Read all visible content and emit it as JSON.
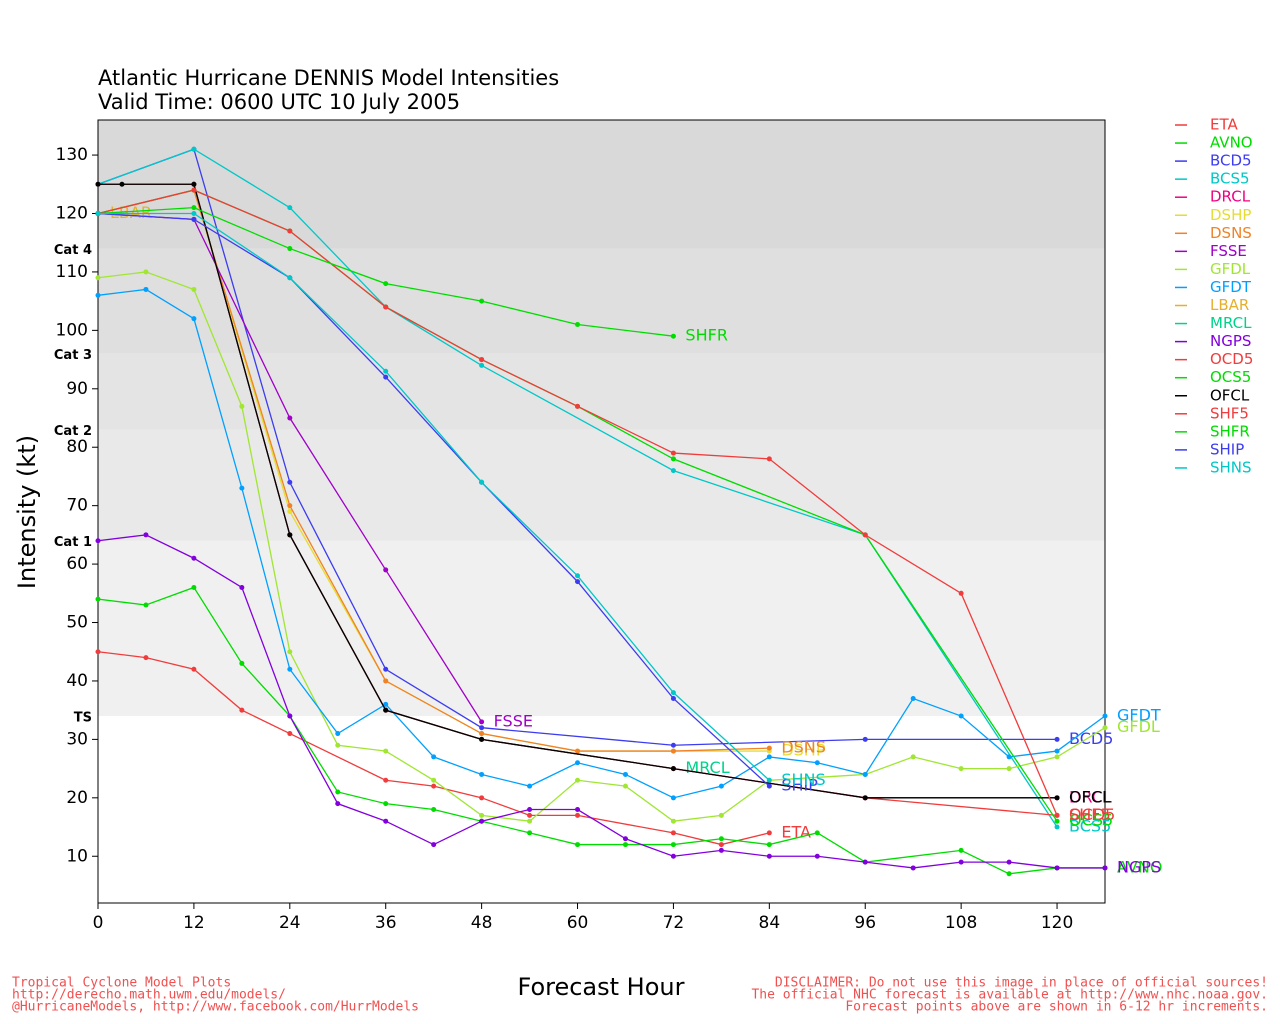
{
  "chart_data": {
    "type": "line",
    "title": "Atlantic Hurricane DENNIS Model Intensities",
    "subtitle": "Valid Time: 0600 UTC 10 July 2005",
    "x_label": "Forecast Hour",
    "y_label": "Intensity (kt)",
    "xlim": [
      0,
      126
    ],
    "ylim": [
      2,
      136
    ],
    "xticks": [
      0,
      12,
      24,
      36,
      48,
      60,
      72,
      84,
      96,
      108,
      120
    ],
    "yticks": [
      10,
      20,
      30,
      40,
      50,
      60,
      70,
      80,
      90,
      100,
      110,
      120,
      130
    ],
    "legend": "right",
    "intensity_bands": [
      {
        "label": "TS",
        "value": 34,
        "color": "#f0f0f0"
      },
      {
        "label": "Cat 1",
        "value": 64,
        "color": "#e9e9e9"
      },
      {
        "label": "Cat 2",
        "value": 83,
        "color": "#e4e4e4"
      },
      {
        "label": "Cat 3",
        "value": 96,
        "color": "#dfdfdf"
      },
      {
        "label": "Cat 4",
        "value": 114,
        "color": "#d9d9d9"
      }
    ],
    "series": [
      {
        "name": "ETA",
        "color": "#f03c3c",
        "x": [
          0,
          6,
          12,
          18,
          24,
          36,
          42,
          48,
          54,
          60,
          72,
          78,
          84
        ],
        "values": [
          45,
          44,
          42,
          35,
          31,
          23,
          22,
          20,
          17,
          17,
          14,
          12,
          14
        ]
      },
      {
        "name": "AVNO",
        "color": "#00dc00",
        "x": [
          0,
          6,
          12,
          18,
          24,
          30,
          36,
          42,
          48,
          54,
          60,
          66,
          72,
          78,
          84,
          90,
          96,
          108,
          114,
          120,
          126
        ],
        "values": [
          54,
          53,
          56,
          43,
          34,
          21,
          19,
          18,
          16,
          14,
          12,
          12,
          12,
          13,
          12,
          14,
          9,
          11,
          7,
          8,
          8
        ]
      },
      {
        "name": "BCD5",
        "color": "#3c3cf0",
        "x": [
          0,
          12,
          24,
          36,
          48,
          72,
          96,
          120
        ],
        "values": [
          125,
          131,
          74,
          42,
          32,
          29,
          30,
          30
        ]
      },
      {
        "name": "BCS5",
        "color": "#00c8c8",
        "x": [
          0,
          12,
          24,
          36,
          48,
          72,
          96,
          120
        ],
        "values": [
          125,
          131,
          121,
          104,
          94,
          76,
          65,
          15
        ]
      },
      {
        "name": "DRCL",
        "color": "#f00082",
        "x": [
          0,
          12,
          24,
          36,
          48,
          72,
          96,
          120
        ],
        "values": [
          125,
          125,
          65,
          35,
          30,
          25,
          20,
          20
        ]
      },
      {
        "name": "DSHP",
        "color": "#e6dc32",
        "x": [
          0,
          12,
          24,
          36,
          48,
          60,
          72,
          84
        ],
        "values": [
          120,
          124,
          69,
          40,
          31,
          28,
          28,
          28
        ]
      },
      {
        "name": "DSNS",
        "color": "#f08228",
        "x": [
          0,
          12,
          24,
          36,
          48,
          60,
          72,
          84
        ],
        "values": [
          120,
          124,
          70,
          40,
          31,
          28,
          28,
          28.5
        ]
      },
      {
        "name": "FSSE",
        "color": "#a000c8",
        "x": [
          0,
          12,
          24,
          36,
          48
        ],
        "values": [
          120,
          119,
          85,
          59,
          33
        ]
      },
      {
        "name": "GFDL",
        "color": "#a0e632",
        "x": [
          0,
          6,
          12,
          18,
          24,
          30,
          36,
          42,
          48,
          54,
          60,
          66,
          72,
          78,
          84,
          96,
          102,
          108,
          114,
          120,
          126
        ],
        "values": [
          109,
          110,
          107,
          87,
          45,
          29,
          28,
          23,
          17,
          16,
          23,
          22,
          16,
          17,
          23,
          24,
          27,
          25,
          25,
          27,
          32
        ]
      },
      {
        "name": "GFDT",
        "color": "#00a0ff",
        "x": [
          0,
          6,
          12,
          18,
          24,
          30,
          36,
          42,
          48,
          54,
          60,
          66,
          72,
          78,
          84,
          90,
          96,
          102,
          108,
          114,
          120,
          126
        ],
        "values": [
          106,
          107,
          102,
          73,
          42,
          31,
          36,
          27,
          24,
          22,
          26,
          24,
          20,
          22,
          27,
          26,
          24,
          37,
          34,
          27,
          28,
          34
        ]
      },
      {
        "name": "LBAR",
        "color": "#e6af2d",
        "x": [
          0
        ],
        "values": [
          120
        ]
      },
      {
        "name": "MRCL",
        "color": "#00d28c",
        "x": [
          0,
          12,
          24,
          36,
          48,
          72
        ],
        "values": [
          125,
          125,
          65,
          35,
          30,
          25
        ]
      },
      {
        "name": "NGPS",
        "color": "#8200dc",
        "x": [
          0,
          6,
          12,
          18,
          24,
          30,
          36,
          42,
          48,
          54,
          60,
          66,
          72,
          78,
          84,
          90,
          96,
          102,
          108,
          114,
          120,
          126
        ],
        "values": [
          64,
          65,
          61,
          56,
          34,
          19,
          16,
          12,
          16,
          18,
          18,
          13,
          10,
          11,
          10,
          10,
          9,
          8,
          9,
          9,
          8,
          8
        ]
      },
      {
        "name": "OCD5",
        "color": "#f03c3c",
        "x": [
          0,
          12,
          24,
          36,
          48,
          72,
          96,
          120
        ],
        "values": [
          125,
          125,
          65,
          35,
          30,
          25,
          20,
          17
        ]
      },
      {
        "name": "OCS5",
        "color": "#00dc00",
        "x": [
          0,
          12,
          24,
          36,
          48,
          60,
          72,
          96,
          120
        ],
        "values": [
          120,
          124,
          117,
          104,
          95,
          87,
          78,
          65,
          16
        ]
      },
      {
        "name": "OFCL",
        "color": "#000000",
        "x": [
          0,
          3,
          12,
          24,
          36,
          48,
          72,
          96,
          120
        ],
        "values": [
          125,
          125,
          125,
          65,
          35,
          30,
          25,
          20,
          20
        ]
      },
      {
        "name": "SHF5",
        "color": "#f03c3c",
        "x": [
          0,
          12,
          24,
          36,
          48,
          60,
          72,
          84,
          96,
          108,
          120
        ],
        "values": [
          120,
          124,
          117,
          104,
          95,
          87,
          79,
          78,
          65,
          55,
          17
        ]
      },
      {
        "name": "SHFR",
        "color": "#00dc00",
        "x": [
          0,
          12,
          24,
          36,
          48,
          60,
          72
        ],
        "values": [
          120,
          121,
          114,
          108,
          105,
          101,
          99
        ]
      },
      {
        "name": "SHIP",
        "color": "#3c3cf0",
        "x": [
          0,
          12,
          24,
          36,
          48,
          60,
          72,
          84
        ],
        "values": [
          120,
          119,
          109,
          92,
          74,
          57,
          37,
          22
        ]
      },
      {
        "name": "SHNS",
        "color": "#00c8c8",
        "x": [
          0,
          12,
          24,
          36,
          48,
          60,
          72,
          84
        ],
        "values": [
          120,
          120,
          109,
          93,
          74,
          58,
          38,
          23
        ]
      }
    ]
  },
  "footer": {
    "left": [
      "Tropical Cyclone Model Plots",
      "http://derecho.math.uwm.edu/models/",
      "@HurricaneModels, http://www.facebook.com/HurrModels"
    ],
    "right": [
      "DISCLAIMER: Do not use this image in place of official sources!",
      "The official NHC forecast is available at http://www.nhc.noaa.gov.",
      "Forecast points above are shown in 6-12 hr increments."
    ]
  }
}
